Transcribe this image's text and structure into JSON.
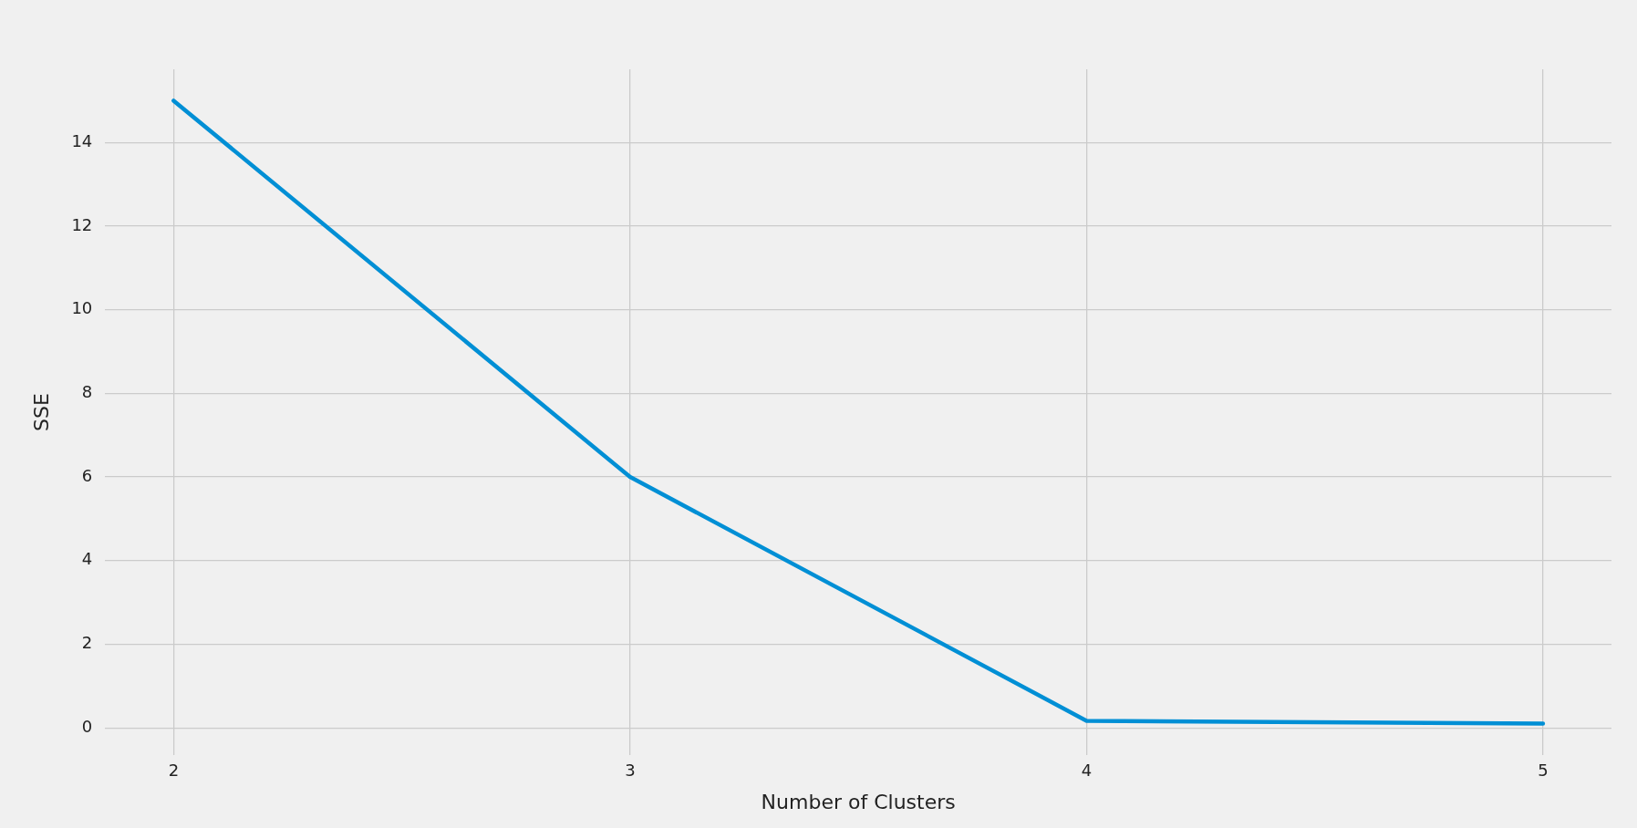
{
  "chart_data": {
    "type": "line",
    "xlabel": "Number of Clusters",
    "ylabel": "SSE",
    "x": [
      2,
      3,
      4,
      5
    ],
    "series": [
      {
        "color": "#008fd5",
        "values": [
          15.0,
          6.0,
          0.17,
          0.1
        ]
      }
    ],
    "xlim": [
      1.85,
      5.15
    ],
    "xticks": [
      2,
      3,
      4,
      5
    ],
    "ylim": [
      -0.65,
      15.75
    ],
    "yticks": [
      0,
      2,
      4,
      6,
      8,
      10,
      12,
      14
    ],
    "grid": true,
    "legend": false,
    "marker": "none",
    "line_style": "solid"
  }
}
